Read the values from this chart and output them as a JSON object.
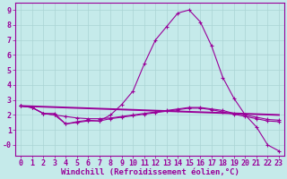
{
  "bg_color": "#c5eaea",
  "grid_color": "#aad4d4",
  "line_color": "#990099",
  "xlim": [
    -0.5,
    23.5
  ],
  "ylim": [
    -0.7,
    9.5
  ],
  "xticks": [
    0,
    1,
    2,
    3,
    4,
    5,
    6,
    7,
    8,
    9,
    10,
    11,
    12,
    13,
    14,
    15,
    16,
    17,
    18,
    19,
    20,
    21,
    22,
    23
  ],
  "yticks": [
    0,
    1,
    2,
    3,
    4,
    5,
    6,
    7,
    8,
    9
  ],
  "ytick_labels": [
    "-0",
    "1",
    "2",
    "3",
    "4",
    "5",
    "6",
    "7",
    "8",
    "9"
  ],
  "xlabel": "Windchill (Refroidissement éolien,°C)",
  "line1_x": [
    0,
    1,
    2,
    3,
    4,
    5,
    6,
    7,
    8,
    9,
    10,
    11,
    12,
    13,
    14,
    15,
    16,
    17,
    18,
    19,
    20,
    21,
    22,
    23
  ],
  "line1_y": [
    2.6,
    2.5,
    2.1,
    2.1,
    1.4,
    1.5,
    1.6,
    1.6,
    2.0,
    2.7,
    3.6,
    5.4,
    7.0,
    7.9,
    8.8,
    9.0,
    8.2,
    6.6,
    4.5,
    3.1,
    2.0,
    1.2,
    0.0,
    -0.4
  ],
  "line2_x": [
    0,
    1,
    2,
    3,
    4,
    5,
    6,
    7,
    8,
    9,
    10,
    11,
    12,
    13,
    14,
    15,
    16,
    17,
    18,
    19,
    20,
    21,
    22,
    23
  ],
  "line2_y": [
    2.6,
    2.5,
    2.1,
    2.0,
    1.9,
    1.8,
    1.75,
    1.75,
    1.8,
    1.9,
    2.0,
    2.1,
    2.2,
    2.3,
    2.4,
    2.5,
    2.5,
    2.4,
    2.3,
    2.1,
    2.0,
    1.85,
    1.7,
    1.65
  ],
  "line3_x": [
    0,
    23
  ],
  "line3_y": [
    2.6,
    2.0
  ],
  "line4_x": [
    0,
    1,
    2,
    3,
    4,
    5,
    6,
    7,
    8,
    9,
    10,
    11,
    12,
    13,
    14,
    15,
    16,
    17,
    18,
    19,
    20,
    21,
    22,
    23
  ],
  "line4_y": [
    2.6,
    2.5,
    2.1,
    2.0,
    1.4,
    1.55,
    1.65,
    1.6,
    1.75,
    1.85,
    1.95,
    2.05,
    2.15,
    2.25,
    2.35,
    2.45,
    2.45,
    2.35,
    2.2,
    2.05,
    1.9,
    1.75,
    1.6,
    1.55
  ],
  "font_size_tick": 6,
  "font_size_label": 6.5
}
